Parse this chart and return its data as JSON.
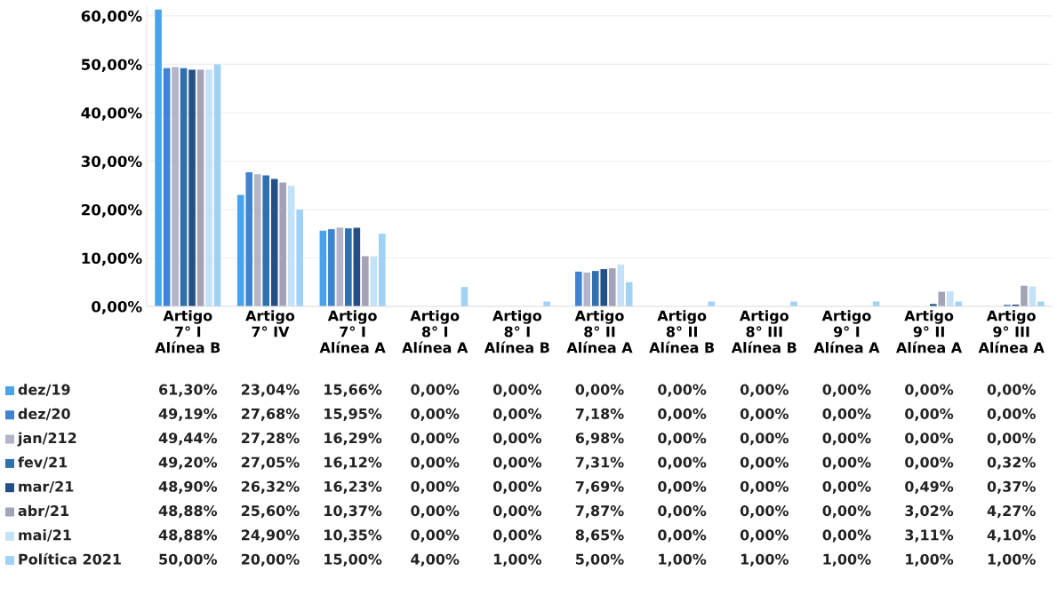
{
  "chart_data": {
    "type": "bar",
    "categories": [
      "Artigo\n7° I\nAlínea B",
      "Artigo\n7° IV",
      "Artigo\n7° I\nAlínea A",
      "Artigo\n8° I\nAlínea A",
      "Artigo\n8° I\nAlínea B",
      "Artigo\n8° II\nAlínea A",
      "Artigo\n8° II\nAlínea B",
      "Artigo\n8° III\nAlínea B",
      "Artigo\n9° I\nAlínea A",
      "Artigo\n9° II\nAlínea A",
      "Artigo\n9° III\nAlínea A"
    ],
    "series": [
      {
        "name": "dez/19",
        "color": "#4aa3ea",
        "values": [
          61.3,
          23.04,
          15.66,
          0,
          0,
          0,
          0,
          0,
          0,
          0,
          0
        ],
        "value_labels": [
          "61,30%",
          "23,04%",
          "15,66%",
          "0,00%",
          "0,00%",
          "0,00%",
          "0,00%",
          "0,00%",
          "0,00%",
          "0,00%",
          "0,00%"
        ]
      },
      {
        "name": "dez/20",
        "color": "#3f83d2",
        "values": [
          49.19,
          27.68,
          15.95,
          0,
          0,
          7.18,
          0,
          0,
          0,
          0,
          0
        ],
        "value_labels": [
          "49,19%",
          "27,68%",
          "15,95%",
          "0,00%",
          "0,00%",
          "7,18%",
          "0,00%",
          "0,00%",
          "0,00%",
          "0,00%",
          "0,00%"
        ]
      },
      {
        "name": "jan/212",
        "color": "#b4b4c8",
        "values": [
          49.44,
          27.28,
          16.29,
          0,
          0,
          6.98,
          0,
          0,
          0,
          0,
          0
        ],
        "value_labels": [
          "49,44%",
          "27,28%",
          "16,29%",
          "0,00%",
          "0,00%",
          "6,98%",
          "0,00%",
          "0,00%",
          "0,00%",
          "0,00%",
          "0,00%"
        ]
      },
      {
        "name": "fev/21",
        "color": "#2e70b0",
        "values": [
          49.2,
          27.05,
          16.12,
          0,
          0,
          7.31,
          0,
          0,
          0,
          0,
          0.32
        ],
        "value_labels": [
          "49,20%",
          "27,05%",
          "16,12%",
          "0,00%",
          "0,00%",
          "7,31%",
          "0,00%",
          "0,00%",
          "0,00%",
          "0,00%",
          "0,32%"
        ]
      },
      {
        "name": "mar/21",
        "color": "#244f86",
        "values": [
          48.9,
          26.32,
          16.23,
          0,
          0,
          7.69,
          0,
          0,
          0,
          0.49,
          0.37
        ],
        "value_labels": [
          "48,90%",
          "26,32%",
          "16,23%",
          "0,00%",
          "0,00%",
          "7,69%",
          "0,00%",
          "0,00%",
          "0,00%",
          "0,49%",
          "0,37%"
        ]
      },
      {
        "name": "abr/21",
        "color": "#a3a3b6",
        "values": [
          48.88,
          25.6,
          10.37,
          0,
          0,
          7.87,
          0,
          0,
          0,
          3.02,
          4.27
        ],
        "value_labels": [
          "48,88%",
          "25,60%",
          "10,37%",
          "0,00%",
          "0,00%",
          "7,87%",
          "0,00%",
          "0,00%",
          "0,00%",
          "3,02%",
          "4,27%"
        ]
      },
      {
        "name": "mai/21",
        "color": "#c4e2f7",
        "values": [
          48.88,
          24.9,
          10.35,
          0,
          0,
          8.65,
          0,
          0,
          0,
          3.11,
          4.1
        ],
        "value_labels": [
          "48,88%",
          "24,90%",
          "10,35%",
          "0,00%",
          "0,00%",
          "8,65%",
          "0,00%",
          "0,00%",
          "0,00%",
          "3,11%",
          "4,10%"
        ]
      },
      {
        "name": "Política 2021",
        "color": "#9fd2f5",
        "values": [
          50.0,
          20.0,
          15.0,
          4.0,
          1.0,
          5.0,
          1.0,
          1.0,
          1.0,
          1.0,
          1.0
        ],
        "value_labels": [
          "50,00%",
          "20,00%",
          "15,00%",
          "4,00%",
          "1,00%",
          "5,00%",
          "1,00%",
          "1,00%",
          "1,00%",
          "1,00%",
          "1,00%"
        ]
      }
    ],
    "ylim": [
      0,
      62
    ],
    "yticks": [
      {
        "value": 0,
        "label": "0,00%"
      },
      {
        "value": 10,
        "label": "10,00%"
      },
      {
        "value": 20,
        "label": "20,00%"
      },
      {
        "value": 30,
        "label": "30,00%"
      },
      {
        "value": 40,
        "label": "40,00%"
      },
      {
        "value": 50,
        "label": "50,00%"
      },
      {
        "value": 60,
        "label": "60,00%"
      }
    ],
    "grid": "y",
    "legend": "bottom left"
  }
}
